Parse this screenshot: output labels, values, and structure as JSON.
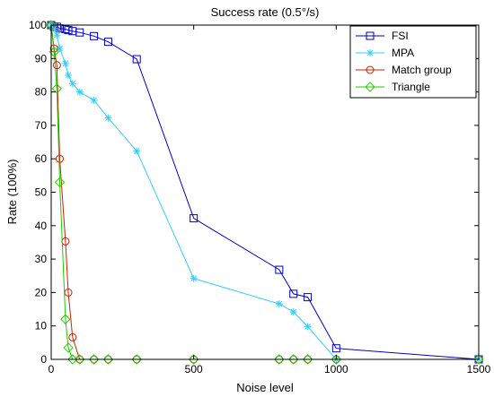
{
  "chart_data": {
    "type": "line",
    "title": "Success rate (0.5°/s)",
    "xlabel": "Noise level",
    "ylabel": "Rate (100%)",
    "xlim": [
      0,
      1500
    ],
    "ylim": [
      0,
      100
    ],
    "x_ticks": [
      0,
      500,
      1000,
      1500
    ],
    "y_ticks": [
      0,
      10,
      20,
      30,
      40,
      50,
      60,
      70,
      80,
      90,
      100
    ],
    "grid": false,
    "legend_position": "top-right",
    "series": [
      {
        "name": "FSI",
        "color": "#0000c8",
        "marker": "square",
        "x": [
          0,
          10,
          20,
          30,
          50,
          60,
          75,
          100,
          150,
          200,
          300,
          500,
          800,
          850,
          900,
          1000,
          1500
        ],
        "y": [
          100,
          99.5,
          99.5,
          99,
          98.8,
          98.5,
          98.2,
          97.8,
          96.7,
          95,
          89.8,
          42.2,
          26.8,
          19.6,
          18.6,
          3.3,
          0
        ]
      },
      {
        "name": "MPA",
        "color": "#33ccff",
        "marker": "star",
        "x": [
          0,
          10,
          20,
          30,
          50,
          60,
          75,
          100,
          150,
          200,
          300,
          500,
          800,
          850,
          900,
          1000,
          1500
        ],
        "y": [
          100,
          99,
          97,
          93,
          88.5,
          85,
          82.5,
          80,
          77.5,
          72.2,
          62.3,
          24.2,
          16.6,
          14.2,
          9.8,
          0,
          0
        ]
      },
      {
        "name": "Match group",
        "color": "#cc2200",
        "marker": "circle",
        "x": [
          0,
          10,
          20,
          30,
          50,
          60,
          75,
          100,
          150,
          200,
          300,
          500,
          800,
          850,
          900,
          1000,
          1500
        ],
        "y": [
          100,
          93,
          88,
          60,
          35.3,
          20,
          6.6,
          0,
          0,
          0,
          0,
          0,
          0,
          0,
          0,
          0,
          0
        ]
      },
      {
        "name": "Triangle",
        "color": "#22cc00",
        "marker": "diamond",
        "x": [
          0,
          10,
          20,
          30,
          50,
          60,
          75,
          100,
          150,
          200,
          300,
          500,
          800,
          850,
          900,
          1000,
          1500
        ],
        "y": [
          100,
          92,
          81,
          53,
          12,
          3.5,
          0,
          0,
          0,
          0,
          0,
          0,
          0,
          0,
          0,
          0,
          0
        ]
      }
    ]
  }
}
